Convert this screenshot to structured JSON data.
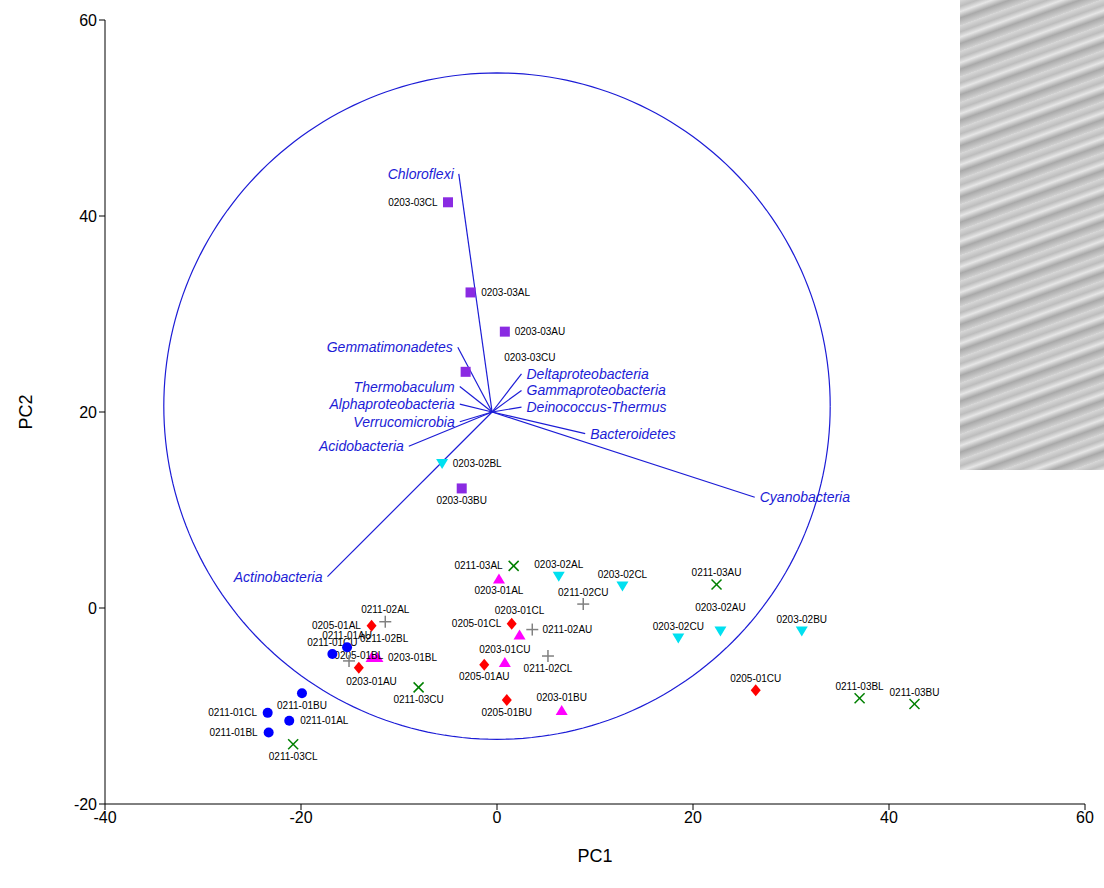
{
  "chart_data": {
    "type": "scatter",
    "x_label": "PC1",
    "y_label": "PC2",
    "xlim": [
      -40,
      60
    ],
    "ylim": [
      -20,
      60
    ],
    "xticks": [
      -40,
      -20,
      0,
      20,
      40,
      60
    ],
    "yticks": [
      -20,
      0,
      20,
      40,
      60
    ],
    "grid": false,
    "circle": {
      "center": [
        0,
        20.6
      ],
      "radius": 34,
      "color": "#1c1cd6"
    },
    "vectors": {
      "origin": [
        -0.5,
        20
      ],
      "color": "#1c1cd6",
      "items": [
        {
          "name": "Chloroflexi",
          "x": -3.9,
          "y": 44.3
        },
        {
          "name": "Gemmatimonadetes",
          "x": -4,
          "y": 26.6
        },
        {
          "name": "Thermobaculum",
          "x": -3.8,
          "y": 22.6
        },
        {
          "name": "Alphaproteobacteria",
          "x": -3.8,
          "y": 20.8
        },
        {
          "name": "Verrucomicrobia",
          "x": -3.8,
          "y": 19.0
        },
        {
          "name": "Acidobacteria",
          "x": -9,
          "y": 16.5
        },
        {
          "name": "Actinobacteria",
          "x": -17.3,
          "y": 3.2
        },
        {
          "name": "Deltaproteobacteria",
          "x": 2.5,
          "y": 23.9
        },
        {
          "name": "Gammaproteobacteria",
          "x": 2.5,
          "y": 22.2
        },
        {
          "name": "Deinococcus-Thermus",
          "x": 2.5,
          "y": 20.5
        },
        {
          "name": "Bacteroidetes",
          "x": 9,
          "y": 17.8
        },
        {
          "name": "Cyanobacteria",
          "x": 26.3,
          "y": 11.3
        }
      ]
    },
    "series": [
      {
        "color": "#8a2be2",
        "marker": "square",
        "points": [
          {
            "label": "0203-03CL",
            "x": -5.0,
            "y": 41.4
          },
          {
            "label": "0203-03AL",
            "x": -2.7,
            "y": 32.2
          },
          {
            "label": "0203-03AU",
            "x": 0.8,
            "y": 28.2
          },
          {
            "label": "0203-03CU",
            "x": -3.2,
            "y": 24.1
          },
          {
            "label": "0203-03BU",
            "x": -3.6,
            "y": 12.2
          }
        ]
      },
      {
        "color": "#00e0f0",
        "marker": "triangle-down",
        "points": [
          {
            "label": "0203-02BL",
            "x": -5.6,
            "y": 14.7
          },
          {
            "label": "0203-02AL",
            "x": 6.3,
            "y": 3.2
          },
          {
            "label": "0203-02CL",
            "x": 12.8,
            "y": 2.2
          },
          {
            "label": "0203-02CU",
            "x": 18.5,
            "y": -3.1
          },
          {
            "label": "0203-02AU",
            "x": 22.8,
            "y": -2.4
          },
          {
            "label": "0203-02BU",
            "x": 31.1,
            "y": -2.4
          }
        ]
      },
      {
        "color": "#ff00ff",
        "marker": "triangle-up",
        "points": [
          {
            "label": "0203-01AL",
            "x": 0.2,
            "y": 3.0
          },
          {
            "label": "0203-01CL",
            "x": 2.3,
            "y": -2.7
          },
          {
            "label": "0203-01CU",
            "x": 0.8,
            "y": -5.5
          },
          {
            "label": "0203-01BU",
            "x": 6.6,
            "y": -10.4
          },
          {
            "label": "0203-01AU",
            "x": -12.8,
            "y": -5.0
          },
          {
            "label": "0203-01BL",
            "x": -12.2,
            "y": -5.0
          }
        ]
      },
      {
        "color": "#ff0000",
        "marker": "diamond",
        "points": [
          {
            "label": "0205-01AL",
            "x": -12.8,
            "y": -1.8
          },
          {
            "label": "0205-01BL",
            "x": -14.1,
            "y": -6.1
          },
          {
            "label": "0205-01CL",
            "x": 1.5,
            "y": -1.6
          },
          {
            "label": "0205-01AU",
            "x": -1.3,
            "y": -5.8
          },
          {
            "label": "0205-01BU",
            "x": 1.0,
            "y": -9.4
          },
          {
            "label": "0205-01CU",
            "x": 26.4,
            "y": -8.4
          }
        ]
      },
      {
        "color": "#808080",
        "marker": "plus",
        "points": [
          {
            "label": "0211-02AL",
            "x": -11.4,
            "y": -1.4
          },
          {
            "label": "0211-02AU",
            "x": 3.6,
            "y": -2.2
          },
          {
            "label": "0211-02CU",
            "x": 8.8,
            "y": 0.4
          },
          {
            "label": "0211-02CL",
            "x": 5.2,
            "y": -4.9
          },
          {
            "label": "0211-02BL",
            "x": -15.1,
            "y": -5.4
          }
        ]
      },
      {
        "color": "#008000",
        "marker": "cross",
        "points": [
          {
            "label": "0211-03AL",
            "x": 1.7,
            "y": 4.3
          },
          {
            "label": "0211-03AU",
            "x": 22.4,
            "y": 2.4
          },
          {
            "label": "0211-03CU",
            "x": -8.0,
            "y": -8.1
          },
          {
            "label": "0211-03CL",
            "x": -20.8,
            "y": -13.9
          },
          {
            "label": "0211-03BL",
            "x": 37.0,
            "y": -9.2
          },
          {
            "label": "0211-03BU",
            "x": 42.6,
            "y": -9.8
          }
        ]
      },
      {
        "color": "#0000ff",
        "marker": "circle",
        "points": [
          {
            "label": "0211-01BU",
            "x": -19.9,
            "y": -8.7
          },
          {
            "label": "0211-01CL",
            "x": -23.4,
            "y": -10.7
          },
          {
            "label": "0211-01AL",
            "x": -21.2,
            "y": -11.5
          },
          {
            "label": "0211-01BL",
            "x": -23.3,
            "y": -12.7
          },
          {
            "label": "0211-01CU",
            "x": -16.8,
            "y": -4.7
          },
          {
            "label": "0211-01AU",
            "x": -15.3,
            "y": -4.0
          }
        ]
      }
    ]
  }
}
